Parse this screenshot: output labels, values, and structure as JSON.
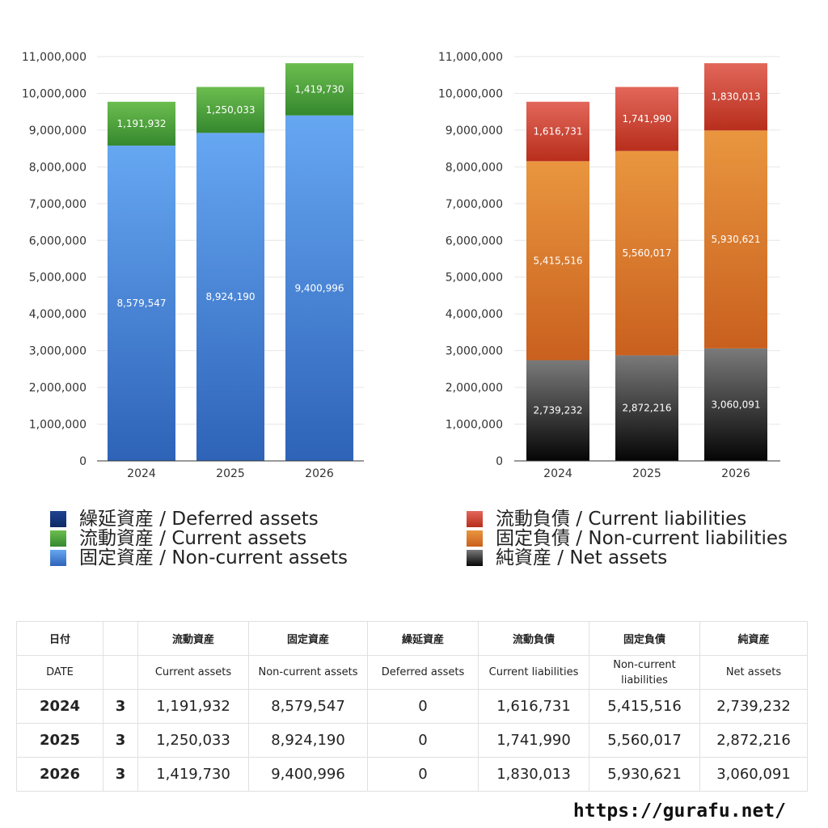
{
  "chart_data": [
    {
      "type": "bar",
      "stacked": true,
      "categories": [
        "2024",
        "2025",
        "2026"
      ],
      "ylim": [
        0,
        11000000
      ],
      "yticks": [
        "0",
        "1,000,000",
        "2,000,000",
        "3,000,000",
        "4,000,000",
        "5,000,000",
        "6,000,000",
        "7,000,000",
        "8,000,000",
        "9,000,000",
        "10,000,000",
        "11,000,000"
      ],
      "grid": true,
      "series": [
        {
          "name": "固定資産 / Non-current assets",
          "values": [
            8579547,
            8924190,
            9400996
          ],
          "labels": [
            "8,579,547",
            "8,924,190",
            "9,400,996"
          ],
          "color_top": "#66a7f2",
          "color_bottom": "#2e63b8"
        },
        {
          "name": "流動資産 / Current assets",
          "values": [
            1191932,
            1250033,
            1419730
          ],
          "labels": [
            "1,191,932",
            "1,250,033",
            "1,419,730"
          ],
          "color_top": "#6cbd4f",
          "color_bottom": "#35882e"
        },
        {
          "name": "繰延資産 / Deferred assets",
          "values": [
            0,
            0,
            0
          ],
          "labels": [
            "",
            "",
            ""
          ],
          "color_top": "#1f4390",
          "color_bottom": "#0d2a66"
        }
      ],
      "legend": {
        "placement": "bottom",
        "order": [
          2,
          1,
          0
        ]
      }
    },
    {
      "type": "bar",
      "stacked": true,
      "categories": [
        "2024",
        "2025",
        "2026"
      ],
      "ylim": [
        0,
        11000000
      ],
      "yticks": [
        "0",
        "1,000,000",
        "2,000,000",
        "3,000,000",
        "4,000,000",
        "5,000,000",
        "6,000,000",
        "7,000,000",
        "8,000,000",
        "9,000,000",
        "10,000,000",
        "11,000,000"
      ],
      "grid": true,
      "series": [
        {
          "name": "純資産 / Net assets",
          "values": [
            2739232,
            2872216,
            3060091
          ],
          "labels": [
            "2,739,232",
            "2,872,216",
            "3,060,091"
          ],
          "color_top": "#7a7a7a",
          "color_bottom": "#050505"
        },
        {
          "name": "固定負債 / Non-current liabilities",
          "values": [
            5415516,
            5560017,
            5930621
          ],
          "labels": [
            "5,415,516",
            "5,560,017",
            "5,930,621"
          ],
          "color_top": "#e9963f",
          "color_bottom": "#c9601e"
        },
        {
          "name": "流動負債 / Current liabilities",
          "values": [
            1616731,
            1741990,
            1830013
          ],
          "labels": [
            "1,616,731",
            "1,741,990",
            "1,830,013"
          ],
          "color_top": "#e2675a",
          "color_bottom": "#b82e1c"
        }
      ],
      "legend": {
        "placement": "bottom",
        "order": [
          2,
          1,
          0
        ]
      }
    }
  ],
  "table": {
    "headers_jp": [
      "日付",
      "",
      "流動資産",
      "固定資産",
      "繰延資産",
      "流動負債",
      "固定負債",
      "純資産"
    ],
    "headers_en": [
      "DATE",
      "",
      "Current assets",
      "Non-current assets",
      "Deferred assets",
      "Current liabilities",
      "Non-current liabilities",
      "Net assets"
    ],
    "rows": [
      {
        "year": "2024",
        "month": "3",
        "values": [
          "1,191,932",
          "8,579,547",
          "0",
          "1,616,731",
          "5,415,516",
          "2,739,232"
        ]
      },
      {
        "year": "2025",
        "month": "3",
        "values": [
          "1,250,033",
          "8,924,190",
          "0",
          "1,741,990",
          "5,560,017",
          "2,872,216"
        ]
      },
      {
        "year": "2026",
        "month": "3",
        "values": [
          "1,419,730",
          "9,400,996",
          "0",
          "1,830,013",
          "5,930,621",
          "3,060,091"
        ]
      }
    ]
  },
  "source": "https://gurafu.net/"
}
